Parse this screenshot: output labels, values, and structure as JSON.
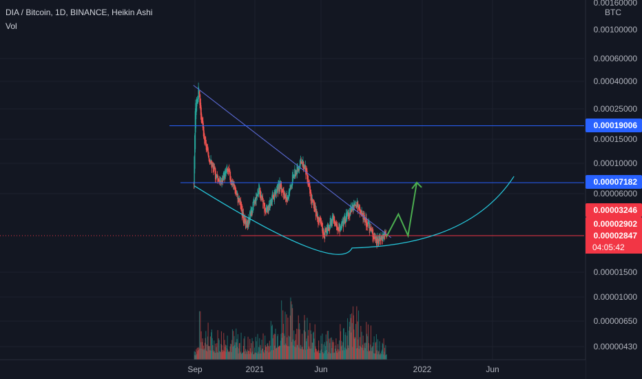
{
  "header": {
    "title": "DIA / Bitcoin, 1D, BINANCE, Heikin Ashi",
    "indicator": "Vol"
  },
  "chart_data": {
    "type": "candlestick",
    "style": "Heikin Ashi",
    "scale": "log",
    "grid": true,
    "background": "#131722",
    "colors": {
      "up": "#26a69a",
      "down": "#ef5350",
      "text": "#b2b5be",
      "grid": "#1e222d"
    },
    "y_axis": {
      "unit": "BTC",
      "ticks": [
        "0.00160000",
        "0.00100000",
        "0.00060000",
        "0.00040000",
        "0.00025000",
        "0.00015000",
        "0.00010000",
        "0.00006000",
        "0.00001500",
        "0.00001000",
        "0.00000650",
        "0.00000430"
      ]
    },
    "x_axis": {
      "ticks": [
        "Sep",
        "2021",
        "Jun",
        "2022",
        "Jun"
      ]
    },
    "price_labels": [
      {
        "value": "0.00019006",
        "color": "#2962ff"
      },
      {
        "value": "0.00007182",
        "color": "#2962ff"
      },
      {
        "value": "0.00003246",
        "color": "#f23645"
      },
      {
        "value": "0.00002902",
        "color": "#f23645"
      },
      {
        "value": "0.00002847",
        "color": "#f23645"
      }
    ],
    "countdown": "04:05:42",
    "horizontal_levels": [
      0.00019006,
      7.182e-05,
      2.902e-05
    ],
    "price_series_approx": [
      [
        "2020-08-21",
        7.2e-05
      ],
      [
        "2020-08-24",
        0.00025
      ],
      [
        "2020-08-28",
        0.0003
      ],
      [
        "2020-09-01",
        0.00036
      ],
      [
        "2020-09-05",
        0.00024
      ],
      [
        "2020-09-12",
        0.00015
      ],
      [
        "2020-09-22",
        0.000115
      ],
      [
        "2020-10-05",
        8.5e-05
      ],
      [
        "2020-10-20",
        7.2e-05
      ],
      [
        "2020-11-01",
        9e-05
      ],
      [
        "2020-11-15",
        7e-05
      ],
      [
        "2020-12-01",
        4.8e-05
      ],
      [
        "2020-12-12",
        3.3e-05
      ],
      [
        "2020-12-25",
        4.5e-05
      ],
      [
        "2021-01-10",
        6.5e-05
      ],
      [
        "2021-01-25",
        4.3e-05
      ],
      [
        "2021-02-10",
        5.6e-05
      ],
      [
        "2021-02-25",
        7e-05
      ],
      [
        "2021-03-10",
        5e-05
      ],
      [
        "2021-03-25",
        8e-05
      ],
      [
        "2021-04-10",
        0.0001
      ],
      [
        "2021-04-20",
        9.5e-05
      ],
      [
        "2021-05-01",
        6e-05
      ],
      [
        "2021-05-15",
        4.2e-05
      ],
      [
        "2021-06-01",
        3e-05
      ],
      [
        "2021-06-20",
        3.8e-05
      ],
      [
        "2021-07-05",
        3.3e-05
      ],
      [
        "2021-07-25",
        4.2e-05
      ],
      [
        "2021-08-10",
        5e-05
      ],
      [
        "2021-08-25",
        4e-05
      ],
      [
        "2021-09-10",
        3.2e-05
      ],
      [
        "2021-09-25",
        2.65e-05
      ],
      [
        "2021-10-10",
        3e-05
      ],
      [
        "2021-10-15",
        2.85e-05
      ]
    ],
    "volume_approx": [
      [
        "2020-09-01",
        0.75
      ],
      [
        "2020-10-01",
        0.45
      ],
      [
        "2020-11-01",
        0.55
      ],
      [
        "2020-12-01",
        0.4
      ],
      [
        "2021-01-01",
        0.35
      ],
      [
        "2021-02-01",
        0.5
      ],
      [
        "2021-03-01",
        1.0
      ],
      [
        "2021-04-01",
        0.85
      ],
      [
        "2021-05-01",
        0.55
      ],
      [
        "2021-06-01",
        0.4
      ],
      [
        "2021-07-01",
        0.45
      ],
      [
        "2021-08-01",
        0.85
      ],
      [
        "2021-09-01",
        0.6
      ],
      [
        "2021-10-01",
        0.3
      ]
    ],
    "drawings": {
      "trendline": {
        "from": [
          "2020-08-20",
          0.00038
        ],
        "to": [
          "2021-10-25",
          2.8e-05
        ]
      },
      "arc": {
        "from": [
          "2020-08-22",
          6.8e-05
        ],
        "bottom": [
          "2021-08-01",
          2.35e-05
        ],
        "to": [
          "2022-07-20",
          8e-05
        ]
      },
      "arrow_path": [
        [
          "2021-10-15",
          2.85e-05
        ],
        [
          "2021-11-10",
          4.2e-05
        ],
        [
          "2021-12-01",
          2.9e-05
        ],
        [
          "2021-12-20",
          7.2e-05
        ]
      ]
    }
  }
}
